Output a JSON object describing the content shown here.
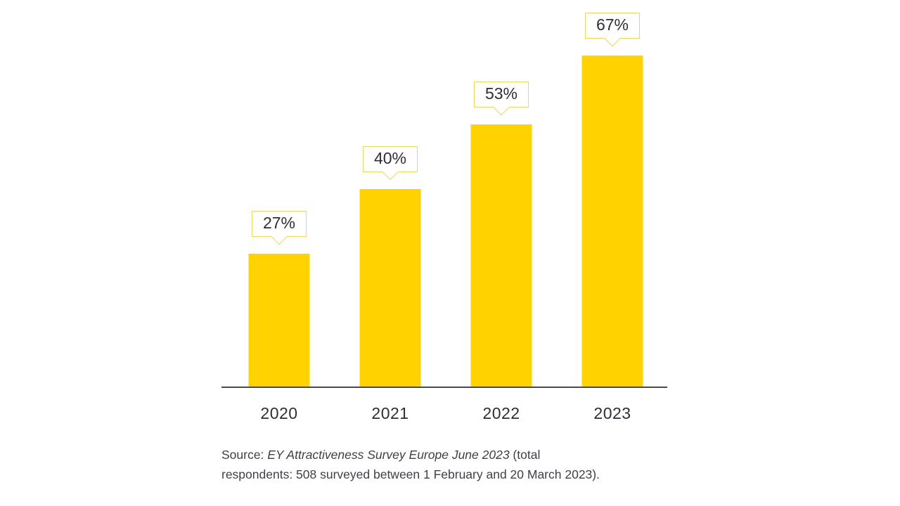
{
  "page": {
    "background": "#ffffff"
  },
  "chart_data": {
    "type": "bar",
    "categories": [
      "2020",
      "2021",
      "2022",
      "2023"
    ],
    "values": [
      27,
      40,
      53,
      67
    ],
    "data_labels": [
      "27%",
      "40%",
      "53%",
      "67%"
    ],
    "title": "",
    "xlabel": "",
    "ylabel": "",
    "ylim": [
      0,
      78
    ],
    "grid": false,
    "legend": "none",
    "bar_color": "#ffd200",
    "callout_border_color": "#eed65e",
    "axis_line_color": "#4a4a4b",
    "label_color": "#2e2e38"
  },
  "source_note": {
    "prefix": "Source: ",
    "citation": "EY Attractiveness Survey Europe June 2023",
    "suffix": " (total respondents: 508 surveyed between 1 February and 20 March 2023)."
  }
}
